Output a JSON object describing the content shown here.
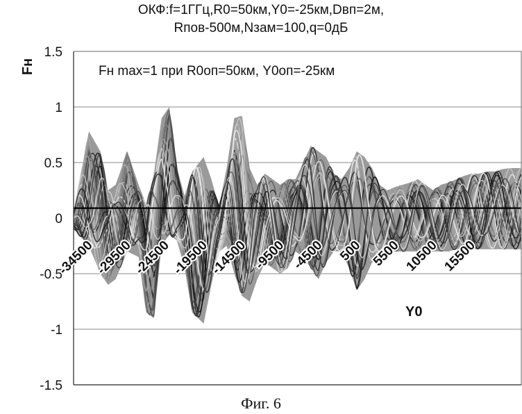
{
  "chart_data": {
    "type": "line",
    "title_line1": "ОКФ:f=1ГГц,R0=50км,Y0=-25км,Dвп=2м,",
    "title_line2": "Rпов-500м,Nзам=100,q=0дБ",
    "ylabel": "Fн",
    "xlabel": "Y0",
    "annotation": "Fн max=1 при R0оп=50км, Y0оп=-25км",
    "caption": "Фиг. 6",
    "ylim": [
      -1.5,
      1.5
    ],
    "yticks": [
      1.5,
      1,
      0.5,
      0,
      -0.5,
      -1,
      -1.5
    ],
    "ytick_labels": [
      "1.5",
      "1",
      "0.5",
      "0",
      "-0.5",
      "-1",
      "-1.5"
    ],
    "xlim": [
      -36500,
      22000
    ],
    "xticks": [
      -34500,
      -29500,
      -24500,
      -19500,
      -14500,
      -9500,
      -4500,
      500,
      5500,
      10500,
      15500
    ],
    "xtick_labels": [
      "-34500",
      "-29500",
      "-24500",
      "-19500",
      "-14500",
      "-9500",
      "-4500",
      "500",
      "5500",
      "10500",
      "15500"
    ],
    "grid": true,
    "envelope": {
      "x": [
        -36500,
        -34500,
        -33000,
        -32000,
        -31000,
        -29500,
        -28000,
        -27000,
        -26000,
        -25000,
        -24000,
        -23000,
        -22000,
        -21000,
        -19500,
        -18500,
        -17500,
        -16500,
        -15500,
        -14500,
        -13500,
        -12500,
        -11500,
        -10500,
        -9500,
        -8500,
        -7500,
        -6500,
        -5500,
        -4500,
        -3500,
        -2500,
        -1500,
        -500,
        500,
        1500,
        2500,
        3500,
        4500,
        5500,
        6500,
        7500,
        8500,
        9500,
        10500,
        11500,
        12500,
        13500,
        14500,
        15500,
        16500,
        17500,
        18500,
        19500,
        20500,
        22000
      ],
      "upper": [
        0.05,
        0.78,
        0.6,
        0.25,
        0.3,
        0.6,
        0.3,
        0.12,
        0.4,
        0.9,
        1.0,
        0.45,
        0.2,
        0.42,
        0.55,
        0.35,
        0.1,
        0.45,
        0.9,
        0.92,
        0.45,
        0.3,
        0.4,
        0.35,
        0.3,
        0.35,
        0.35,
        0.5,
        0.65,
        0.6,
        0.55,
        0.4,
        0.35,
        0.45,
        0.6,
        0.55,
        0.45,
        0.3,
        0.25,
        0.28,
        0.3,
        0.32,
        0.35,
        0.3,
        0.25,
        0.3,
        0.32,
        0.35,
        0.38,
        0.4,
        0.4,
        0.42,
        0.42,
        0.44,
        0.45,
        0.45
      ],
      "lower": [
        -0.1,
        -0.25,
        -0.5,
        -0.6,
        -0.55,
        -0.3,
        -0.35,
        -0.85,
        -0.9,
        -0.25,
        -0.15,
        -0.2,
        -0.45,
        -0.85,
        -0.95,
        -0.6,
        -0.3,
        -0.25,
        -0.5,
        -0.7,
        -0.75,
        -0.55,
        -0.4,
        -0.45,
        -0.5,
        -0.45,
        -0.3,
        -0.35,
        -0.45,
        -0.55,
        -0.4,
        -0.3,
        -0.3,
        -0.45,
        -0.65,
        -0.55,
        -0.4,
        -0.35,
        -0.3,
        -0.3,
        -0.3,
        -0.3,
        -0.3,
        -0.3,
        -0.3,
        -0.3,
        -0.3,
        -0.28,
        -0.28,
        -0.28,
        -0.28,
        -0.28,
        -0.28,
        -0.28,
        -0.28,
        -0.28
      ]
    },
    "baseline_level": 0.09
  }
}
